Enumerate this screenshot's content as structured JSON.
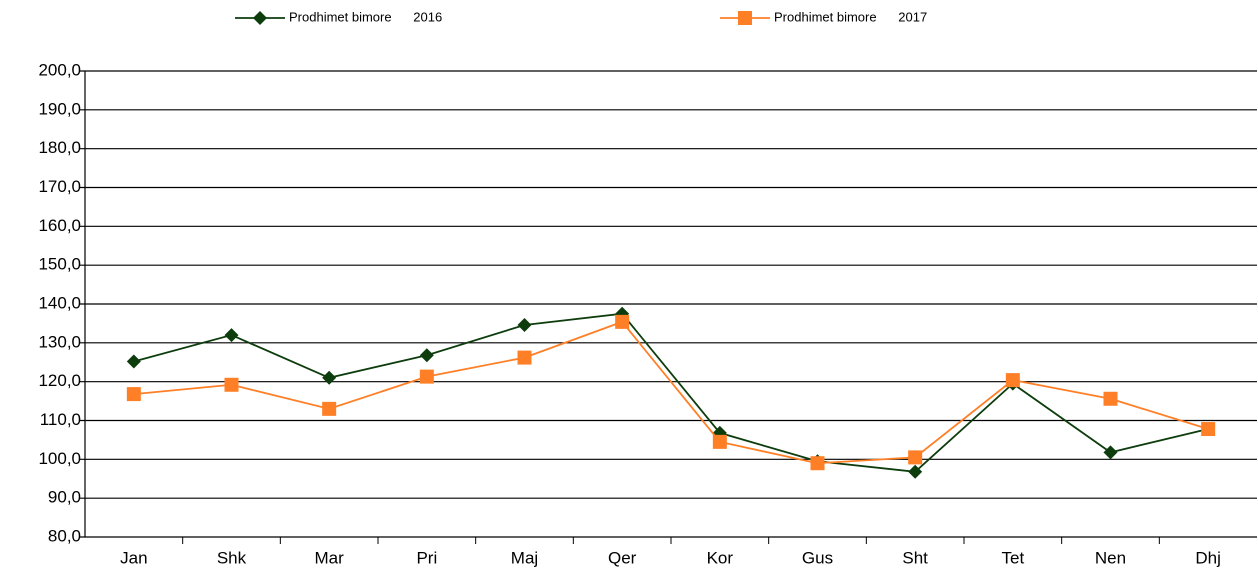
{
  "chart_data": {
    "type": "line",
    "categories": [
      "Jan",
      "Shk",
      "Mar",
      "Pri",
      "Maj",
      "Qer",
      "Kor",
      "Gus",
      "Sht",
      "Tet",
      "Nen",
      "Dhj"
    ],
    "series": [
      {
        "name": "Prodhimet bimore      2016",
        "color": "#0d3d0d",
        "marker": "diamond",
        "values": [
          125.2,
          132.0,
          121.0,
          126.8,
          134.6,
          137.5,
          106.8,
          99.5,
          96.8,
          119.5,
          101.8,
          107.8
        ]
      },
      {
        "name": "Prodhimet bimore      2017",
        "color": "#ff7f27",
        "marker": "square",
        "values": [
          116.8,
          119.2,
          113.0,
          121.3,
          126.2,
          135.4,
          104.5,
          99.0,
          100.5,
          120.4,
          115.6,
          107.8
        ]
      }
    ],
    "ylim": [
      80,
      200
    ],
    "yticks": [
      {
        "value": 80,
        "label": "80,0"
      },
      {
        "value": 90,
        "label": "90,0"
      },
      {
        "value": 100,
        "label": "100,0"
      },
      {
        "value": 110,
        "label": "110,0"
      },
      {
        "value": 120,
        "label": "120,0"
      },
      {
        "value": 130,
        "label": "130,0"
      },
      {
        "value": 140,
        "label": "140,0"
      },
      {
        "value": 150,
        "label": "150,0"
      },
      {
        "value": 160,
        "label": "160,0"
      },
      {
        "value": 170,
        "label": "170,0"
      },
      {
        "value": 180,
        "label": "180,0"
      },
      {
        "value": 190,
        "label": "190,0"
      },
      {
        "value": 200,
        "label": "200,0"
      }
    ],
    "grid": true,
    "legend": "top"
  }
}
